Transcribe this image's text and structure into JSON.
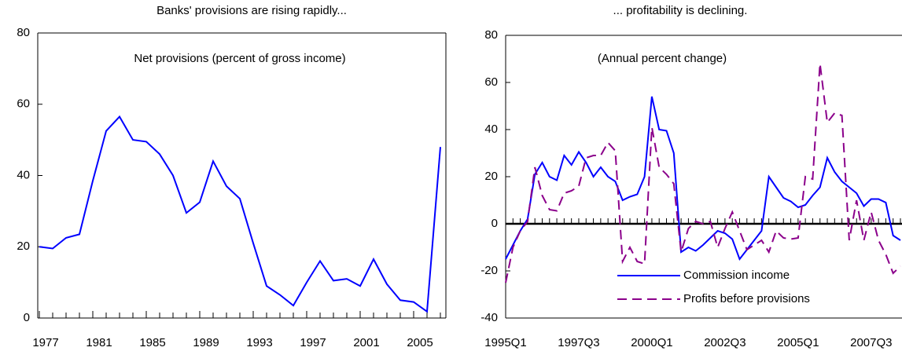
{
  "chart_data": [
    {
      "type": "line",
      "title": "Banks' provisions are rising rapidly...",
      "annotation": "Net provisions (percent of gross income)",
      "x": [
        1977,
        1978,
        1979,
        1980,
        1981,
        1982,
        1983,
        1984,
        1985,
        1986,
        1987,
        1988,
        1989,
        1990,
        1991,
        1992,
        1993,
        1994,
        1995,
        1996,
        1997,
        1998,
        1999,
        2000,
        2001,
        2002,
        2003,
        2004,
        2005,
        2006,
        2007
      ],
      "values": [
        20,
        19.5,
        22.5,
        23.5,
        38.5,
        52.5,
        56.5,
        50,
        49.5,
        46,
        40,
        29.5,
        32.5,
        44,
        37,
        33.5,
        21,
        9,
        6.5,
        3.5,
        10,
        16,
        10.5,
        11,
        9,
        16.5,
        9.5,
        5,
        4.5,
        1.8,
        48
      ],
      "color": "#0000ff",
      "xlim": [
        1977,
        2007
      ],
      "xticks": [
        1977,
        1981,
        1985,
        1989,
        1993,
        1997,
        2001,
        2005
      ],
      "ylim": [
        0,
        80
      ],
      "yticks": [
        0,
        20,
        40,
        60,
        80
      ]
    },
    {
      "type": "line",
      "title": "... profitability  is declining.",
      "annotation": "(Annual percent change)",
      "categories": [
        "1995Q1",
        null,
        null,
        null,
        null,
        null,
        null,
        null,
        null,
        null,
        "1997Q3",
        null,
        null,
        null,
        null,
        null,
        null,
        null,
        null,
        null,
        "2000Q1",
        null,
        null,
        null,
        null,
        null,
        null,
        null,
        null,
        null,
        "2002Q3",
        null,
        null,
        null,
        null,
        null,
        null,
        null,
        null,
        null,
        "2005Q1",
        null,
        null,
        null,
        null,
        null,
        null,
        null,
        null,
        null,
        "2007Q3",
        null,
        null,
        null,
        null
      ],
      "series": [
        {
          "name": "Commission income",
          "color": "#0000ff",
          "dashed": false,
          "values": [
            -15,
            -9,
            -3,
            2,
            21,
            26,
            20,
            18.5,
            29,
            25,
            30.5,
            26,
            20,
            24,
            20,
            18,
            10,
            11.5,
            12.5,
            20,
            54,
            40,
            39.5,
            30,
            -12,
            -10,
            -11.5,
            -9,
            -6,
            -3,
            -4,
            -6.5,
            -15,
            -11,
            -7,
            -3,
            20,
            15.5,
            11,
            9.5,
            7,
            8,
            12,
            15.5,
            28,
            22,
            18,
            15.5,
            13,
            7.5,
            10.5,
            10.5,
            9,
            -5,
            -7
          ]
        },
        {
          "name": "Profits before provisions",
          "color": "#8b008b",
          "dashed": true,
          "values": [
            -25,
            -10,
            -3,
            1,
            24,
            12,
            6,
            5.5,
            13,
            14,
            16,
            28,
            29,
            29,
            34.5,
            31,
            -16,
            -10,
            -16,
            -17,
            41,
            24,
            21,
            17,
            -12,
            -2,
            1,
            0,
            1,
            -10,
            -2,
            5,
            -3,
            -11,
            -9,
            -7,
            -12,
            -3,
            -6,
            -6.5,
            -6,
            20,
            19,
            68,
            43,
            47,
            46,
            -7,
            10,
            -7,
            5,
            -7,
            -13,
            -21,
            -18
          ]
        }
      ],
      "ylim": [
        -40,
        80
      ],
      "yticks": [
        -40,
        -20,
        0,
        20,
        40,
        60,
        80
      ],
      "legend": "lower-center"
    }
  ]
}
